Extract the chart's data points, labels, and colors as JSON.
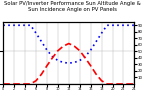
{
  "title_line1": "Solar PV/Inverter Performance Sun Altitude Angle & Sun Incidence Angle on PV Panels",
  "x": [
    0,
    1,
    2,
    3,
    4,
    5,
    6,
    7,
    8,
    9,
    10,
    11,
    12,
    13,
    14,
    15,
    16,
    17,
    18,
    19,
    20,
    21,
    22,
    23,
    24
  ],
  "sun_altitude": [
    0,
    0,
    0,
    0,
    0,
    0,
    5,
    15,
    28,
    40,
    51,
    58,
    62,
    58,
    51,
    40,
    28,
    15,
    5,
    0,
    0,
    0,
    0,
    0,
    0
  ],
  "sun_incidence": [
    90,
    90,
    90,
    90,
    90,
    90,
    78,
    65,
    52,
    42,
    36,
    33,
    32,
    33,
    36,
    42,
    52,
    65,
    78,
    90,
    90,
    90,
    90,
    90,
    90
  ],
  "altitude_color": "#ff0000",
  "incidence_color": "#0000ff",
  "altitude_linestyle": "dashed",
  "incidence_linestyle": "dotted",
  "yticks_right": [
    10,
    20,
    30,
    40,
    50,
    60,
    70,
    80,
    90
  ],
  "ylim": [
    0,
    95
  ],
  "xlim": [
    0,
    24
  ],
  "xticks": [
    0,
    2,
    4,
    6,
    8,
    10,
    12,
    14,
    16,
    18,
    20,
    22,
    24
  ],
  "background_color": "#ffffff",
  "grid_color": "#b0b0b0",
  "altitude_linewidth": 1.2,
  "incidence_linewidth": 1.2,
  "title_fontsize": 3.8
}
